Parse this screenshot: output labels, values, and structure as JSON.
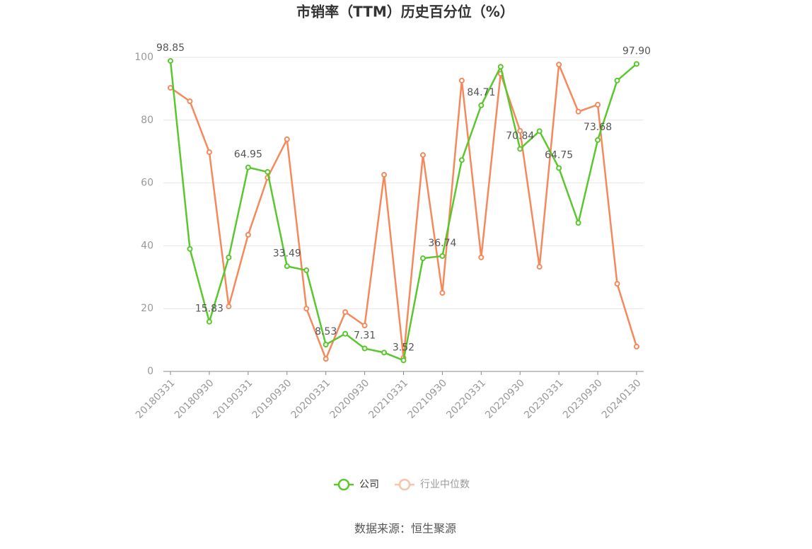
{
  "chart_data": {
    "type": "line",
    "title": "市销率（TTM）历史百分位（%）",
    "source": "数据来源：恒生聚源",
    "categories": [
      "20180331",
      null,
      "20180930",
      null,
      "20190331",
      null,
      "20190930",
      null,
      "20200331",
      null,
      "20200930",
      null,
      "20210331",
      null,
      "20210930",
      null,
      "20220331",
      null,
      "20220930",
      null,
      "20230331",
      null,
      "20230930",
      null,
      "20240130"
    ],
    "series": [
      {
        "name": "公司",
        "color": "#5ac72e",
        "values": [
          98.85,
          39,
          15.83,
          36.3,
          64.95,
          63.5,
          33.49,
          32.2,
          8.53,
          12,
          7.31,
          6,
          3.52,
          36,
          36.74,
          67.3,
          84.71,
          97,
          70.84,
          76.5,
          64.75,
          47.3,
          73.68,
          92.6,
          97.9
        ],
        "value_labels": [
          "98.85",
          null,
          "15.83",
          null,
          "64.95",
          null,
          "33.49",
          null,
          "8.53",
          null,
          "7.31",
          null,
          "3.52",
          null,
          "36.74",
          null,
          "84.71",
          null,
          "70.84",
          null,
          "64.75",
          null,
          "73.68",
          null,
          "97.90"
        ]
      },
      {
        "name": "行业中位数",
        "color": "#f5895b",
        "values": [
          90.3,
          86,
          69.8,
          20.7,
          43.5,
          61.7,
          73.9,
          20,
          4,
          18.9,
          14.6,
          62.6,
          4.3,
          68.9,
          25,
          92.6,
          36.3,
          94.8,
          76.6,
          33.3,
          97.7,
          82.7,
          84.9,
          27.9,
          7.9
        ]
      }
    ],
    "ylim": [
      0,
      100
    ],
    "yticks": [
      0,
      20,
      40,
      60,
      80,
      100
    ],
    "grid": true
  }
}
